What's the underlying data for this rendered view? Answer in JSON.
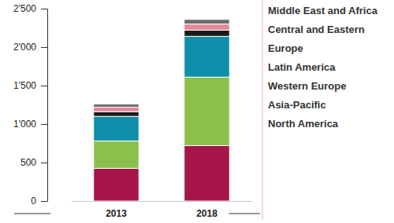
{
  "chart_data": {
    "type": "bar",
    "stacked": true,
    "categories": [
      "2013",
      "2018"
    ],
    "series": [
      {
        "name": "North America",
        "color": "#a5154a",
        "values": [
          425,
          720
        ]
      },
      {
        "name": "Asia-Pacific",
        "color": "#8cc04c",
        "values": [
          355,
          890
        ]
      },
      {
        "name": "Western Europe",
        "color": "#0e8ea8",
        "values": [
          320,
          530
        ]
      },
      {
        "name": "Latin America",
        "color": "#1a1a1a",
        "values": [
          60,
          80
        ]
      },
      {
        "name": "Central and Eastern Europe",
        "color": "#e3899c",
        "values": [
          60,
          80
        ]
      },
      {
        "name": "Middle East and Africa",
        "color": "#6b6b6b",
        "values": [
          40,
          60
        ]
      }
    ],
    "ylim": [
      0,
      2500
    ],
    "yticks": [
      0,
      500,
      {
        "value": 1000,
        "label": "1'000"
      },
      {
        "value": 1500,
        "label": "1'500"
      },
      {
        "value": 2000,
        "label": "2'000"
      },
      {
        "value": 2500,
        "label": "2'500"
      }
    ]
  }
}
